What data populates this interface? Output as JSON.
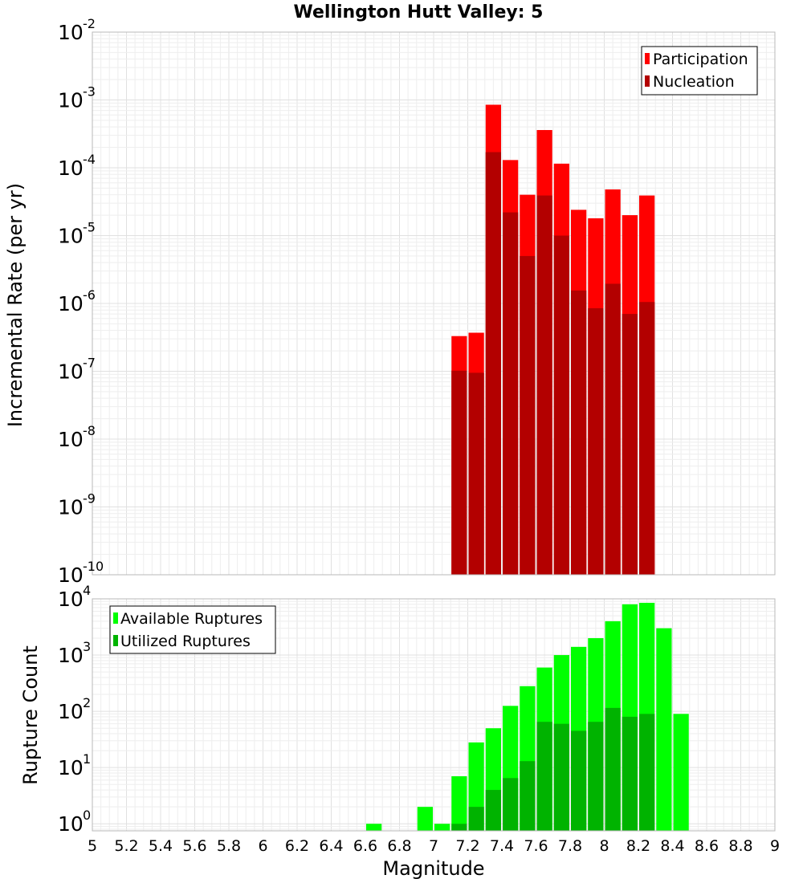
{
  "chart_data": [
    {
      "type": "bar",
      "title": "Wellington Hutt Valley: 5",
      "ylabel": "Incremental Rate (per yr)",
      "xlabel": "",
      "xlim": [
        5,
        9
      ],
      "ylim": [
        1e-10,
        0.01
      ],
      "yscale": "log",
      "y_tick_exponents": [
        "-2",
        "-3",
        "-4",
        "-5",
        "-6",
        "-7",
        "-8",
        "-9",
        "-10"
      ],
      "y_tick_base": "10",
      "grid": true,
      "legend_position": "top-right",
      "bar_width": 0.1,
      "series": [
        {
          "name": "Participation",
          "color": "#ff0000",
          "x": [
            7.15,
            7.25,
            7.35,
            7.45,
            7.55,
            7.65,
            7.75,
            7.85,
            7.95,
            8.05,
            8.15,
            8.25
          ],
          "values": [
            3.3e-07,
            3.7e-07,
            0.00085,
            0.00013,
            4e-05,
            0.00036,
            0.000115,
            2.4e-05,
            1.8e-05,
            4.8e-05,
            2e-05,
            3.9e-05
          ]
        },
        {
          "name": "Nucleation",
          "color": "#b30000",
          "x": [
            7.15,
            7.25,
            7.35,
            7.45,
            7.55,
            7.65,
            7.75,
            7.85,
            7.95,
            8.05,
            8.15,
            8.25
          ],
          "values": [
            1.02e-07,
            9.5e-08,
            0.00017,
            2.2e-05,
            5e-06,
            3.9e-05,
            1e-05,
            1.55e-06,
            8.5e-07,
            1.95e-06,
            7e-07,
            1.05e-06
          ]
        }
      ]
    },
    {
      "type": "bar",
      "title": "",
      "ylabel": "Rupture Count",
      "xlabel": "Magnitude",
      "xlim": [
        5,
        9
      ],
      "x_ticks": [
        "5",
        "5.2",
        "5.4",
        "5.6",
        "5.8",
        "6",
        "6.2",
        "6.4",
        "6.6",
        "6.8",
        "7",
        "7.2",
        "7.4",
        "7.6",
        "7.8",
        "8",
        "8.2",
        "8.4",
        "8.6",
        "8.8",
        "9"
      ],
      "ylim": [
        0.75,
        10000
      ],
      "yscale": "log",
      "y_tick_exponents": [
        "4",
        "3",
        "2",
        "1",
        "0"
      ],
      "y_tick_base": "10",
      "grid": true,
      "legend_position": "top-left",
      "bar_width": 0.1,
      "series": [
        {
          "name": "Available Ruptures",
          "color": "#00ff00",
          "x": [
            6.65,
            6.95,
            7.05,
            7.15,
            7.25,
            7.35,
            7.45,
            7.55,
            7.65,
            7.75,
            7.85,
            7.95,
            8.05,
            8.15,
            8.25,
            8.35,
            8.45
          ],
          "values": [
            1,
            2,
            1,
            7,
            28,
            50,
            125,
            280,
            600,
            1000,
            1400,
            2000,
            4000,
            8000,
            8500,
            3000,
            90
          ]
        },
        {
          "name": "Utilized Ruptures",
          "color": "#00b300",
          "x": [
            7.15,
            7.25,
            7.35,
            7.45,
            7.55,
            7.65,
            7.75,
            7.85,
            7.95,
            8.05,
            8.15,
            8.25
          ],
          "values": [
            1,
            2,
            4,
            6.5,
            13,
            65,
            60,
            45,
            65,
            115,
            80,
            90
          ]
        }
      ]
    }
  ]
}
